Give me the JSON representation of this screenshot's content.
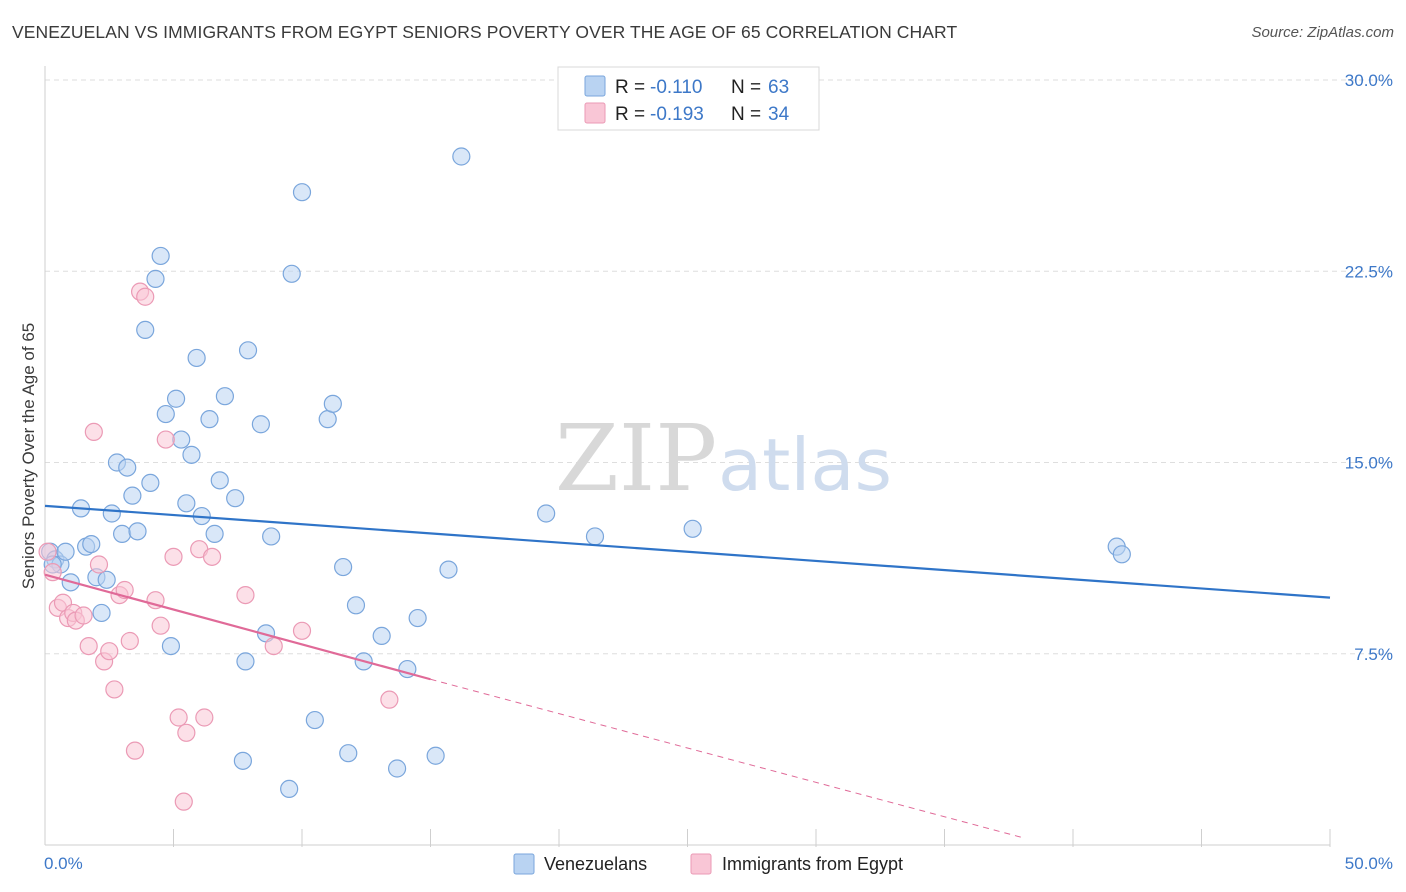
{
  "title": "VENEZUELAN VS IMMIGRANTS FROM EGYPT SENIORS POVERTY OVER THE AGE OF 65 CORRELATION CHART",
  "source": "Source: ZipAtlas.com",
  "watermark": {
    "zip": "ZIP",
    "atlas": "atlas"
  },
  "colors": {
    "blue_fill": "#b9d3f2",
    "blue_stroke": "#7aa6dc",
    "blue_line": "#2f74c8",
    "pink_fill": "#f9c6d6",
    "pink_stroke": "#eb9ab5",
    "pink_line": "#e06a98",
    "grid": "#dedede",
    "axis_label": "#3d78c8"
  },
  "legend": {
    "rows": [
      {
        "r_label": "R =",
        "r_value": "-0.110",
        "n_label": "N =",
        "n_value": "63"
      },
      {
        "r_label": "R =",
        "r_value": "-0.193",
        "n_label": "N =",
        "n_value": "34"
      }
    ]
  },
  "chart_data": {
    "type": "scatter",
    "title": "VENEZUELAN VS IMMIGRANTS FROM EGYPT SENIORS POVERTY OVER THE AGE OF 65 CORRELATION CHART",
    "xlabel": "",
    "ylabel": "Seniors Poverty Over the Age of 65",
    "xlim": [
      0,
      50
    ],
    "ylim": [
      0,
      30
    ],
    "x_tick_labels": [
      "0.0%",
      "50.0%"
    ],
    "y_ticks": [
      7.5,
      15.0,
      22.5,
      30.0
    ],
    "y_tick_labels": [
      "7.5%",
      "15.0%",
      "22.5%",
      "30.0%"
    ],
    "grid": true,
    "legend_position": "top-center",
    "series": [
      {
        "name": "Venezuelans",
        "r": -0.11,
        "n": 63,
        "trend": {
          "x0": 0,
          "y0": 13.3,
          "x1": 50,
          "y1": 9.7
        },
        "points": [
          [
            0.2,
            11.5
          ],
          [
            0.4,
            11.2
          ],
          [
            0.6,
            11.0
          ],
          [
            0.8,
            11.5
          ],
          [
            1.0,
            10.3
          ],
          [
            1.4,
            13.2
          ],
          [
            1.6,
            11.7
          ],
          [
            1.8,
            11.8
          ],
          [
            2.0,
            10.5
          ],
          [
            2.2,
            9.1
          ],
          [
            2.4,
            10.4
          ],
          [
            2.6,
            13.0
          ],
          [
            2.8,
            15.0
          ],
          [
            3.0,
            12.2
          ],
          [
            3.2,
            14.8
          ],
          [
            3.4,
            13.7
          ],
          [
            3.6,
            12.3
          ],
          [
            3.9,
            20.2
          ],
          [
            4.1,
            14.2
          ],
          [
            4.3,
            22.2
          ],
          [
            4.5,
            23.1
          ],
          [
            4.7,
            16.9
          ],
          [
            4.9,
            7.8
          ],
          [
            5.1,
            17.5
          ],
          [
            5.3,
            15.9
          ],
          [
            5.5,
            13.4
          ],
          [
            5.7,
            15.3
          ],
          [
            5.9,
            19.1
          ],
          [
            6.1,
            12.9
          ],
          [
            6.4,
            16.7
          ],
          [
            6.6,
            12.2
          ],
          [
            6.8,
            14.3
          ],
          [
            7.0,
            17.6
          ],
          [
            7.4,
            13.6
          ],
          [
            7.7,
            3.3
          ],
          [
            7.8,
            7.2
          ],
          [
            7.9,
            19.4
          ],
          [
            8.4,
            16.5
          ],
          [
            8.6,
            8.3
          ],
          [
            8.8,
            12.1
          ],
          [
            9.5,
            2.2
          ],
          [
            9.6,
            22.4
          ],
          [
            10.0,
            25.6
          ],
          [
            10.5,
            4.9
          ],
          [
            11.0,
            16.7
          ],
          [
            11.2,
            17.3
          ],
          [
            11.6,
            10.9
          ],
          [
            11.8,
            3.6
          ],
          [
            12.1,
            9.4
          ],
          [
            12.4,
            7.2
          ],
          [
            13.1,
            8.2
          ],
          [
            13.7,
            3.0
          ],
          [
            14.1,
            6.9
          ],
          [
            14.5,
            8.9
          ],
          [
            15.2,
            3.5
          ],
          [
            15.7,
            10.8
          ],
          [
            16.2,
            27.0
          ],
          [
            19.5,
            13.0
          ],
          [
            21.4,
            12.1
          ],
          [
            25.2,
            12.4
          ],
          [
            41.7,
            11.7
          ],
          [
            41.9,
            11.4
          ],
          [
            0.3,
            11.0
          ]
        ]
      },
      {
        "name": "Immigrants from Egypt",
        "r": -0.193,
        "n": 34,
        "trend": {
          "x0": 0,
          "y0": 10.6,
          "x1": 15,
          "y1": 6.5
        },
        "trend_dashed_to": {
          "x": 38.0,
          "y": 0.3
        },
        "points": [
          [
            0.1,
            11.5
          ],
          [
            0.3,
            10.7
          ],
          [
            0.5,
            9.3
          ],
          [
            0.7,
            9.5
          ],
          [
            0.9,
            8.9
          ],
          [
            1.1,
            9.1
          ],
          [
            1.2,
            8.8
          ],
          [
            1.5,
            9.0
          ],
          [
            1.7,
            7.8
          ],
          [
            1.9,
            16.2
          ],
          [
            2.1,
            11.0
          ],
          [
            2.3,
            7.2
          ],
          [
            2.5,
            7.6
          ],
          [
            2.7,
            6.1
          ],
          [
            2.9,
            9.8
          ],
          [
            3.1,
            10.0
          ],
          [
            3.3,
            8.0
          ],
          [
            3.5,
            3.7
          ],
          [
            3.7,
            21.7
          ],
          [
            3.9,
            21.5
          ],
          [
            4.3,
            9.6
          ],
          [
            4.5,
            8.6
          ],
          [
            4.7,
            15.9
          ],
          [
            5.0,
            11.3
          ],
          [
            5.2,
            5.0
          ],
          [
            5.4,
            1.7
          ],
          [
            5.5,
            4.4
          ],
          [
            6.0,
            11.6
          ],
          [
            6.2,
            5.0
          ],
          [
            6.5,
            11.3
          ],
          [
            7.8,
            9.8
          ],
          [
            8.9,
            7.8
          ],
          [
            10.0,
            8.4
          ],
          [
            13.4,
            5.7
          ]
        ]
      }
    ]
  }
}
